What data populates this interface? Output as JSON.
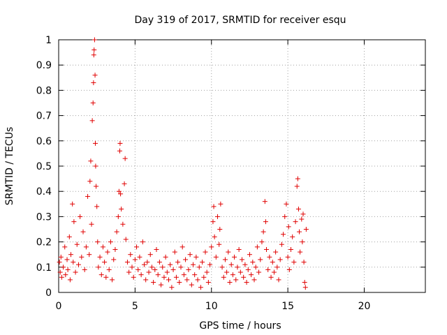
{
  "chart_data": {
    "type": "scatter",
    "title": "Day 319 of 2017, SRMTID for receiver esqu",
    "xlabel": "GPS time / hours",
    "ylabel": "SRMTID / TECUs",
    "xlim": [
      0,
      24
    ],
    "ylim": [
      0,
      1
    ],
    "xticks": [
      0,
      5,
      10,
      15,
      20
    ],
    "xtick_labels": [
      "0",
      "5",
      "10",
      "15",
      "20"
    ],
    "yticks": [
      0,
      0.1,
      0.2,
      0.3,
      0.4,
      0.5,
      0.6,
      0.7,
      0.8,
      0.9,
      1
    ],
    "ytick_labels": [
      "0",
      "0.1",
      "0.2",
      "0.3",
      "0.4",
      "0.5",
      "0.6",
      "0.7",
      "0.8",
      "0.9",
      "1"
    ],
    "grid": true,
    "marker": "+",
    "color": "#e00000",
    "series": [
      {
        "name": "SRMTID",
        "points": [
          [
            0.05,
            0.12
          ],
          [
            0.1,
            0.08
          ],
          [
            0.15,
            0.14
          ],
          [
            0.2,
            0.06
          ],
          [
            0.3,
            0.1
          ],
          [
            0.4,
            0.18
          ],
          [
            0.45,
            0.07
          ],
          [
            0.55,
            0.13
          ],
          [
            0.6,
            0.09
          ],
          [
            0.7,
            0.22
          ],
          [
            0.75,
            0.05
          ],
          [
            0.8,
            0.15
          ],
          [
            0.9,
            0.35
          ],
          [
            0.95,
            0.12
          ],
          [
            1.0,
            0.28
          ],
          [
            1.1,
            0.08
          ],
          [
            1.2,
            0.19
          ],
          [
            1.3,
            0.11
          ],
          [
            1.4,
            0.3
          ],
          [
            1.5,
            0.14
          ],
          [
            1.6,
            0.24
          ],
          [
            1.7,
            0.09
          ],
          [
            1.8,
            0.18
          ],
          [
            1.9,
            0.38
          ],
          [
            2.0,
            0.15
          ],
          [
            2.05,
            0.44
          ],
          [
            2.1,
            0.52
          ],
          [
            2.15,
            0.27
          ],
          [
            2.2,
            0.68
          ],
          [
            2.25,
            0.75
          ],
          [
            2.28,
            0.83
          ],
          [
            2.3,
            0.94
          ],
          [
            2.32,
            0.96
          ],
          [
            2.35,
            1.0
          ],
          [
            2.38,
            0.86
          ],
          [
            2.4,
            0.59
          ],
          [
            2.42,
            0.5
          ],
          [
            2.45,
            0.42
          ],
          [
            2.5,
            0.34
          ],
          [
            2.55,
            0.2
          ],
          [
            2.6,
            0.1
          ],
          [
            2.7,
            0.14
          ],
          [
            2.8,
            0.07
          ],
          [
            2.9,
            0.18
          ],
          [
            3.0,
            0.12
          ],
          [
            3.1,
            0.06
          ],
          [
            3.2,
            0.16
          ],
          [
            3.3,
            0.09
          ],
          [
            3.4,
            0.2
          ],
          [
            3.5,
            0.05
          ],
          [
            3.6,
            0.13
          ],
          [
            3.7,
            0.17
          ],
          [
            3.8,
            0.24
          ],
          [
            3.9,
            0.3
          ],
          [
            3.95,
            0.4
          ],
          [
            4.0,
            0.56
          ],
          [
            4.02,
            0.59
          ],
          [
            4.05,
            0.39
          ],
          [
            4.1,
            0.33
          ],
          [
            4.2,
            0.27
          ],
          [
            4.3,
            0.43
          ],
          [
            4.35,
            0.53
          ],
          [
            4.4,
            0.21
          ],
          [
            4.5,
            0.12
          ],
          [
            4.6,
            0.08
          ],
          [
            4.7,
            0.15
          ],
          [
            4.8,
            0.1
          ],
          [
            4.9,
            0.06
          ],
          [
            5.0,
            0.13
          ],
          [
            5.1,
            0.18
          ],
          [
            5.2,
            0.09
          ],
          [
            5.3,
            0.14
          ],
          [
            5.4,
            0.07
          ],
          [
            5.5,
            0.2
          ],
          [
            5.6,
            0.11
          ],
          [
            5.7,
            0.05
          ],
          [
            5.8,
            0.12
          ],
          [
            5.9,
            0.08
          ],
          [
            6.0,
            0.15
          ],
          [
            6.1,
            0.1
          ],
          [
            6.2,
            0.04
          ],
          [
            6.3,
            0.09
          ],
          [
            6.4,
            0.17
          ],
          [
            6.5,
            0.07
          ],
          [
            6.6,
            0.12
          ],
          [
            6.7,
            0.03
          ],
          [
            6.8,
            0.1
          ],
          [
            6.9,
            0.06
          ],
          [
            7.0,
            0.14
          ],
          [
            7.1,
            0.08
          ],
          [
            7.2,
            0.05
          ],
          [
            7.3,
            0.11
          ],
          [
            7.4,
            0.02
          ],
          [
            7.5,
            0.09
          ],
          [
            7.6,
            0.16
          ],
          [
            7.7,
            0.06
          ],
          [
            7.8,
            0.12
          ],
          [
            7.9,
            0.04
          ],
          [
            8.0,
            0.1
          ],
          [
            8.1,
            0.18
          ],
          [
            8.2,
            0.07
          ],
          [
            8.3,
            0.13
          ],
          [
            8.4,
            0.05
          ],
          [
            8.5,
            0.09
          ],
          [
            8.6,
            0.15
          ],
          [
            8.7,
            0.03
          ],
          [
            8.8,
            0.11
          ],
          [
            8.9,
            0.07
          ],
          [
            9.0,
            0.14
          ],
          [
            9.1,
            0.05
          ],
          [
            9.2,
            0.1
          ],
          [
            9.3,
            0.02
          ],
          [
            9.4,
            0.12
          ],
          [
            9.5,
            0.06
          ],
          [
            9.6,
            0.16
          ],
          [
            9.7,
            0.08
          ],
          [
            9.8,
            0.04
          ],
          [
            9.9,
            0.11
          ],
          [
            10.0,
            0.18
          ],
          [
            10.1,
            0.28
          ],
          [
            10.15,
            0.34
          ],
          [
            10.2,
            0.22
          ],
          [
            10.3,
            0.14
          ],
          [
            10.4,
            0.3
          ],
          [
            10.5,
            0.19
          ],
          [
            10.55,
            0.25
          ],
          [
            10.6,
            0.35
          ],
          [
            10.7,
            0.1
          ],
          [
            10.8,
            0.06
          ],
          [
            10.9,
            0.13
          ],
          [
            11.0,
            0.08
          ],
          [
            11.1,
            0.16
          ],
          [
            11.2,
            0.04
          ],
          [
            11.3,
            0.11
          ],
          [
            11.4,
            0.07
          ],
          [
            11.5,
            0.14
          ],
          [
            11.6,
            0.05
          ],
          [
            11.7,
            0.1
          ],
          [
            11.8,
            0.17
          ],
          [
            11.9,
            0.08
          ],
          [
            12.0,
            0.13
          ],
          [
            12.1,
            0.06
          ],
          [
            12.2,
            0.11
          ],
          [
            12.3,
            0.04
          ],
          [
            12.4,
            0.09
          ],
          [
            12.5,
            0.15
          ],
          [
            12.6,
            0.07
          ],
          [
            12.7,
            0.12
          ],
          [
            12.8,
            0.05
          ],
          [
            12.9,
            0.1
          ],
          [
            13.0,
            0.18
          ],
          [
            13.1,
            0.08
          ],
          [
            13.2,
            0.13
          ],
          [
            13.3,
            0.2
          ],
          [
            13.4,
            0.24
          ],
          [
            13.5,
            0.36
          ],
          [
            13.55,
            0.28
          ],
          [
            13.6,
            0.17
          ],
          [
            13.7,
            0.09
          ],
          [
            13.8,
            0.14
          ],
          [
            13.9,
            0.06
          ],
          [
            14.0,
            0.12
          ],
          [
            14.1,
            0.08
          ],
          [
            14.2,
            0.16
          ],
          [
            14.3,
            0.1
          ],
          [
            14.4,
            0.05
          ],
          [
            14.5,
            0.13
          ],
          [
            14.6,
            0.19
          ],
          [
            14.7,
            0.23
          ],
          [
            14.8,
            0.3
          ],
          [
            14.9,
            0.35
          ],
          [
            15.0,
            0.14
          ],
          [
            15.05,
            0.26
          ],
          [
            15.1,
            0.09
          ],
          [
            15.2,
            0.17
          ],
          [
            15.3,
            0.22
          ],
          [
            15.4,
            0.12
          ],
          [
            15.5,
            0.28
          ],
          [
            15.6,
            0.42
          ],
          [
            15.65,
            0.45
          ],
          [
            15.7,
            0.33
          ],
          [
            15.75,
            0.24
          ],
          [
            15.8,
            0.16
          ],
          [
            15.9,
            0.29
          ],
          [
            15.95,
            0.2
          ],
          [
            16.0,
            0.31
          ],
          [
            16.05,
            0.12
          ],
          [
            16.1,
            0.04
          ],
          [
            16.15,
            0.02
          ],
          [
            16.2,
            0.25
          ]
        ]
      }
    ]
  }
}
